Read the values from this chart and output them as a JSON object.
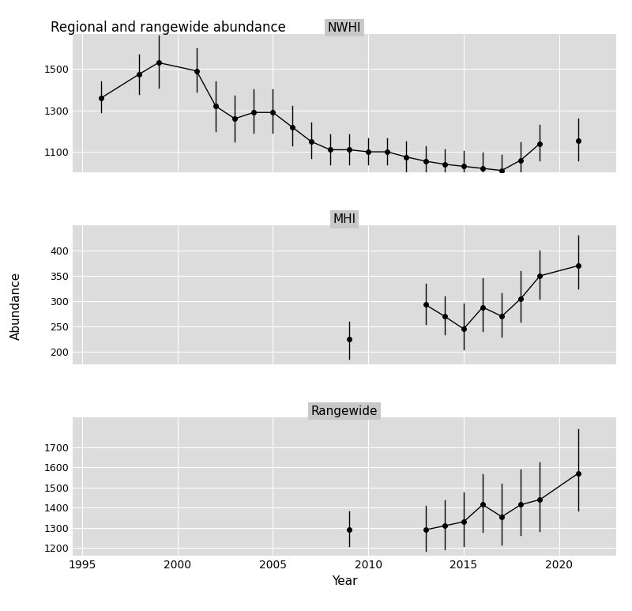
{
  "title": "Regional and rangewide abundance",
  "ylabel": "Abundance",
  "xlabel": "Year",
  "nwhi": {
    "label": "NWHI",
    "years": [
      1996,
      1998,
      1999,
      2001,
      2002,
      2003,
      2004,
      2005,
      2006,
      2007,
      2008,
      2009,
      2010,
      2011,
      2012,
      2013,
      2014,
      2015,
      2016,
      2017,
      2018,
      2019
    ],
    "est": [
      1360,
      1475,
      1530,
      1490,
      1320,
      1260,
      1290,
      1290,
      1220,
      1150,
      1110,
      1110,
      1100,
      1100,
      1075,
      1055,
      1040,
      1030,
      1020,
      1010,
      1060,
      1140
    ],
    "lo": [
      1290,
      1380,
      1410,
      1390,
      1200,
      1150,
      1190,
      1190,
      1130,
      1070,
      1040,
      1040,
      1040,
      1040,
      1005,
      985,
      970,
      960,
      950,
      940,
      980,
      1060
    ],
    "hi": [
      1440,
      1570,
      1660,
      1600,
      1440,
      1370,
      1400,
      1400,
      1320,
      1240,
      1185,
      1185,
      1165,
      1165,
      1150,
      1125,
      1110,
      1105,
      1095,
      1085,
      1145,
      1230
    ],
    "lone_year": 2021,
    "lone_est": 1155,
    "lone_lo": 1060,
    "lone_hi": 1260
  },
  "mhi": {
    "label": "MHI",
    "years": [
      2013,
      2014,
      2015,
      2016,
      2017,
      2018,
      2019,
      2021
    ],
    "est": [
      293,
      270,
      245,
      288,
      270,
      305,
      350,
      370
    ],
    "lo": [
      255,
      235,
      205,
      240,
      230,
      260,
      305,
      325
    ],
    "hi": [
      335,
      310,
      295,
      345,
      315,
      360,
      400,
      430
    ],
    "lone_year": 2009,
    "lone_est": 225,
    "lone_lo": 185,
    "lone_hi": 260
  },
  "rangewide": {
    "label": "Rangewide",
    "years": [
      2013,
      2014,
      2015,
      2016,
      2017,
      2018,
      2019,
      2021
    ],
    "est": [
      1290,
      1310,
      1330,
      1415,
      1355,
      1415,
      1440,
      1570
    ],
    "lo": [
      1185,
      1195,
      1210,
      1280,
      1215,
      1265,
      1285,
      1385
    ],
    "hi": [
      1410,
      1435,
      1475,
      1565,
      1520,
      1590,
      1625,
      1790
    ],
    "lone_year": 2009,
    "lone_est": 1290,
    "lone_lo": 1210,
    "lone_hi": 1380
  },
  "nwhi_ylim": [
    1000,
    1670
  ],
  "nwhi_yticks": [
    1100,
    1300,
    1500
  ],
  "mhi_ylim": [
    175,
    450
  ],
  "mhi_yticks": [
    200,
    250,
    300,
    350,
    400
  ],
  "rangewide_ylim": [
    1160,
    1850
  ],
  "rangewide_yticks": [
    1200,
    1300,
    1400,
    1500,
    1600,
    1700
  ],
  "xlim": [
    1994.5,
    2023.0
  ],
  "xticks": [
    1995,
    2000,
    2005,
    2010,
    2015,
    2020
  ]
}
